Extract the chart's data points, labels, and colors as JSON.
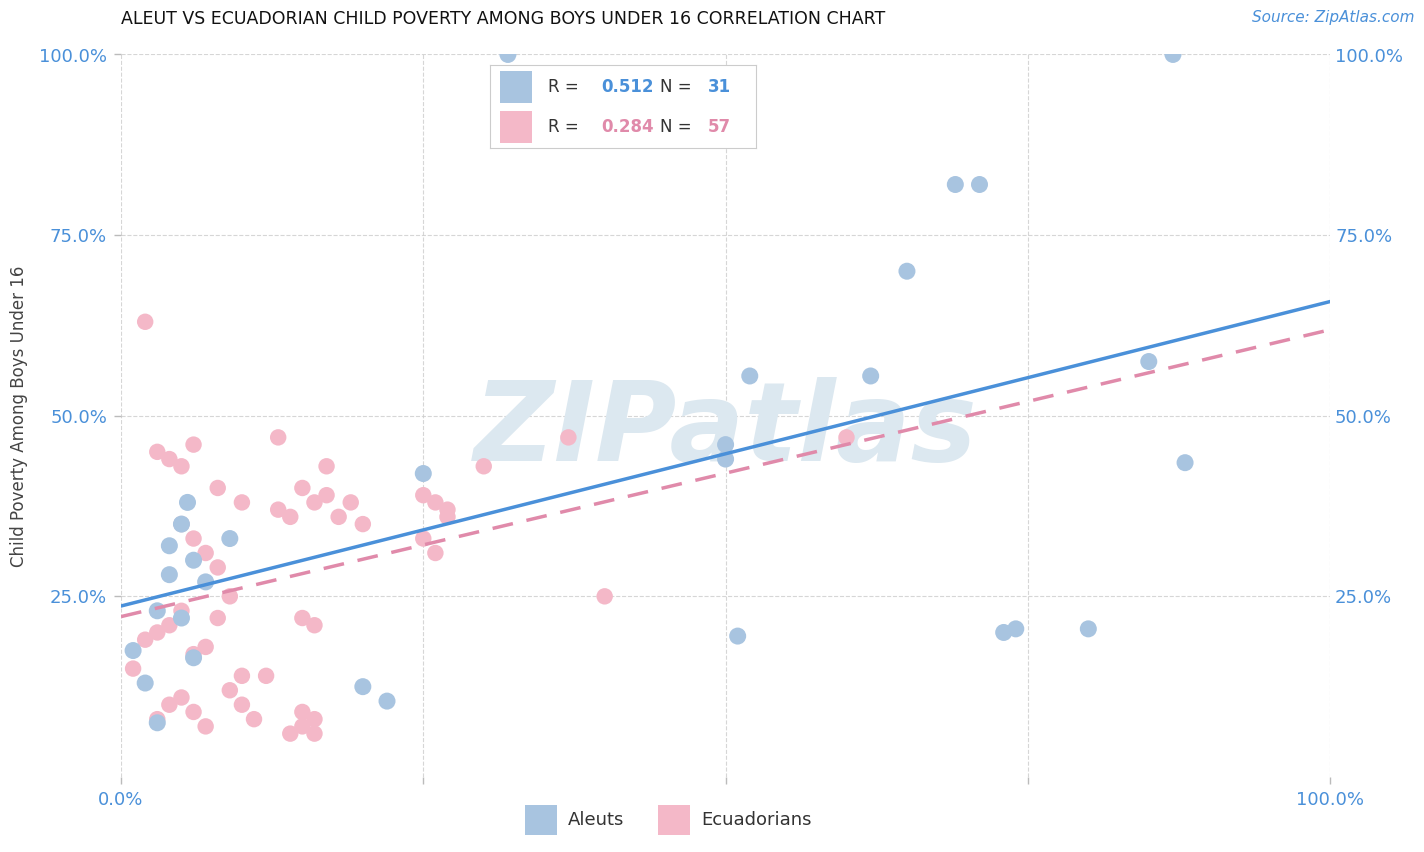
{
  "title": "ALEUT VS ECUADORIAN CHILD POVERTY AMONG BOYS UNDER 16 CORRELATION CHART",
  "source": "Source: ZipAtlas.com",
  "ylabel": "Child Poverty Among Boys Under 16",
  "xlim": [
    0,
    1
  ],
  "ylim": [
    0,
    1
  ],
  "aleut_R": 0.512,
  "aleut_N": 31,
  "ecuadorian_R": 0.284,
  "ecuadorian_N": 57,
  "aleut_color": "#a8c4e0",
  "ecuadorian_color": "#f4b8c8",
  "aleut_line_color": "#4a90d9",
  "ecuadorian_line_color": "#e08aaa",
  "watermark_text": "ZIPatlas",
  "watermark_color": "#dce8f0",
  "aleut_points_x": [
    0.32,
    0.87,
    0.02,
    0.04,
    0.05,
    0.06,
    0.03,
    0.01,
    0.07,
    0.055,
    0.04,
    0.05,
    0.09,
    0.25,
    0.5,
    0.69,
    0.71,
    0.65,
    0.85,
    0.88,
    0.73,
    0.8,
    0.74,
    0.62,
    0.5,
    0.52,
    0.06,
    0.2,
    0.22,
    0.51,
    0.03
  ],
  "aleut_points_y": [
    1.0,
    1.0,
    0.13,
    0.32,
    0.35,
    0.3,
    0.23,
    0.175,
    0.27,
    0.38,
    0.28,
    0.22,
    0.33,
    0.42,
    0.46,
    0.82,
    0.82,
    0.7,
    0.575,
    0.435,
    0.2,
    0.205,
    0.205,
    0.555,
    0.44,
    0.555,
    0.165,
    0.125,
    0.105,
    0.195,
    0.075
  ],
  "ecuadorian_points_x": [
    0.01,
    0.02,
    0.03,
    0.04,
    0.05,
    0.06,
    0.07,
    0.08,
    0.09,
    0.1,
    0.02,
    0.03,
    0.04,
    0.05,
    0.06,
    0.08,
    0.1,
    0.13,
    0.14,
    0.15,
    0.16,
    0.17,
    0.17,
    0.18,
    0.19,
    0.2,
    0.05,
    0.06,
    0.07,
    0.08,
    0.25,
    0.26,
    0.27,
    0.27,
    0.03,
    0.04,
    0.05,
    0.06,
    0.07,
    0.09,
    0.1,
    0.11,
    0.12,
    0.14,
    0.15,
    0.16,
    0.13,
    0.25,
    0.26,
    0.3,
    0.15,
    0.16,
    0.37,
    0.4,
    0.6,
    0.15,
    0.16
  ],
  "ecuadorian_points_y": [
    0.15,
    0.19,
    0.2,
    0.21,
    0.23,
    0.17,
    0.18,
    0.22,
    0.25,
    0.14,
    0.63,
    0.45,
    0.44,
    0.43,
    0.46,
    0.4,
    0.38,
    0.37,
    0.36,
    0.4,
    0.38,
    0.43,
    0.39,
    0.36,
    0.38,
    0.35,
    0.35,
    0.33,
    0.31,
    0.29,
    0.39,
    0.38,
    0.37,
    0.36,
    0.08,
    0.1,
    0.11,
    0.09,
    0.07,
    0.12,
    0.1,
    0.08,
    0.14,
    0.06,
    0.07,
    0.06,
    0.47,
    0.33,
    0.31,
    0.43,
    0.09,
    0.08,
    0.47,
    0.25,
    0.47,
    0.22,
    0.21
  ]
}
